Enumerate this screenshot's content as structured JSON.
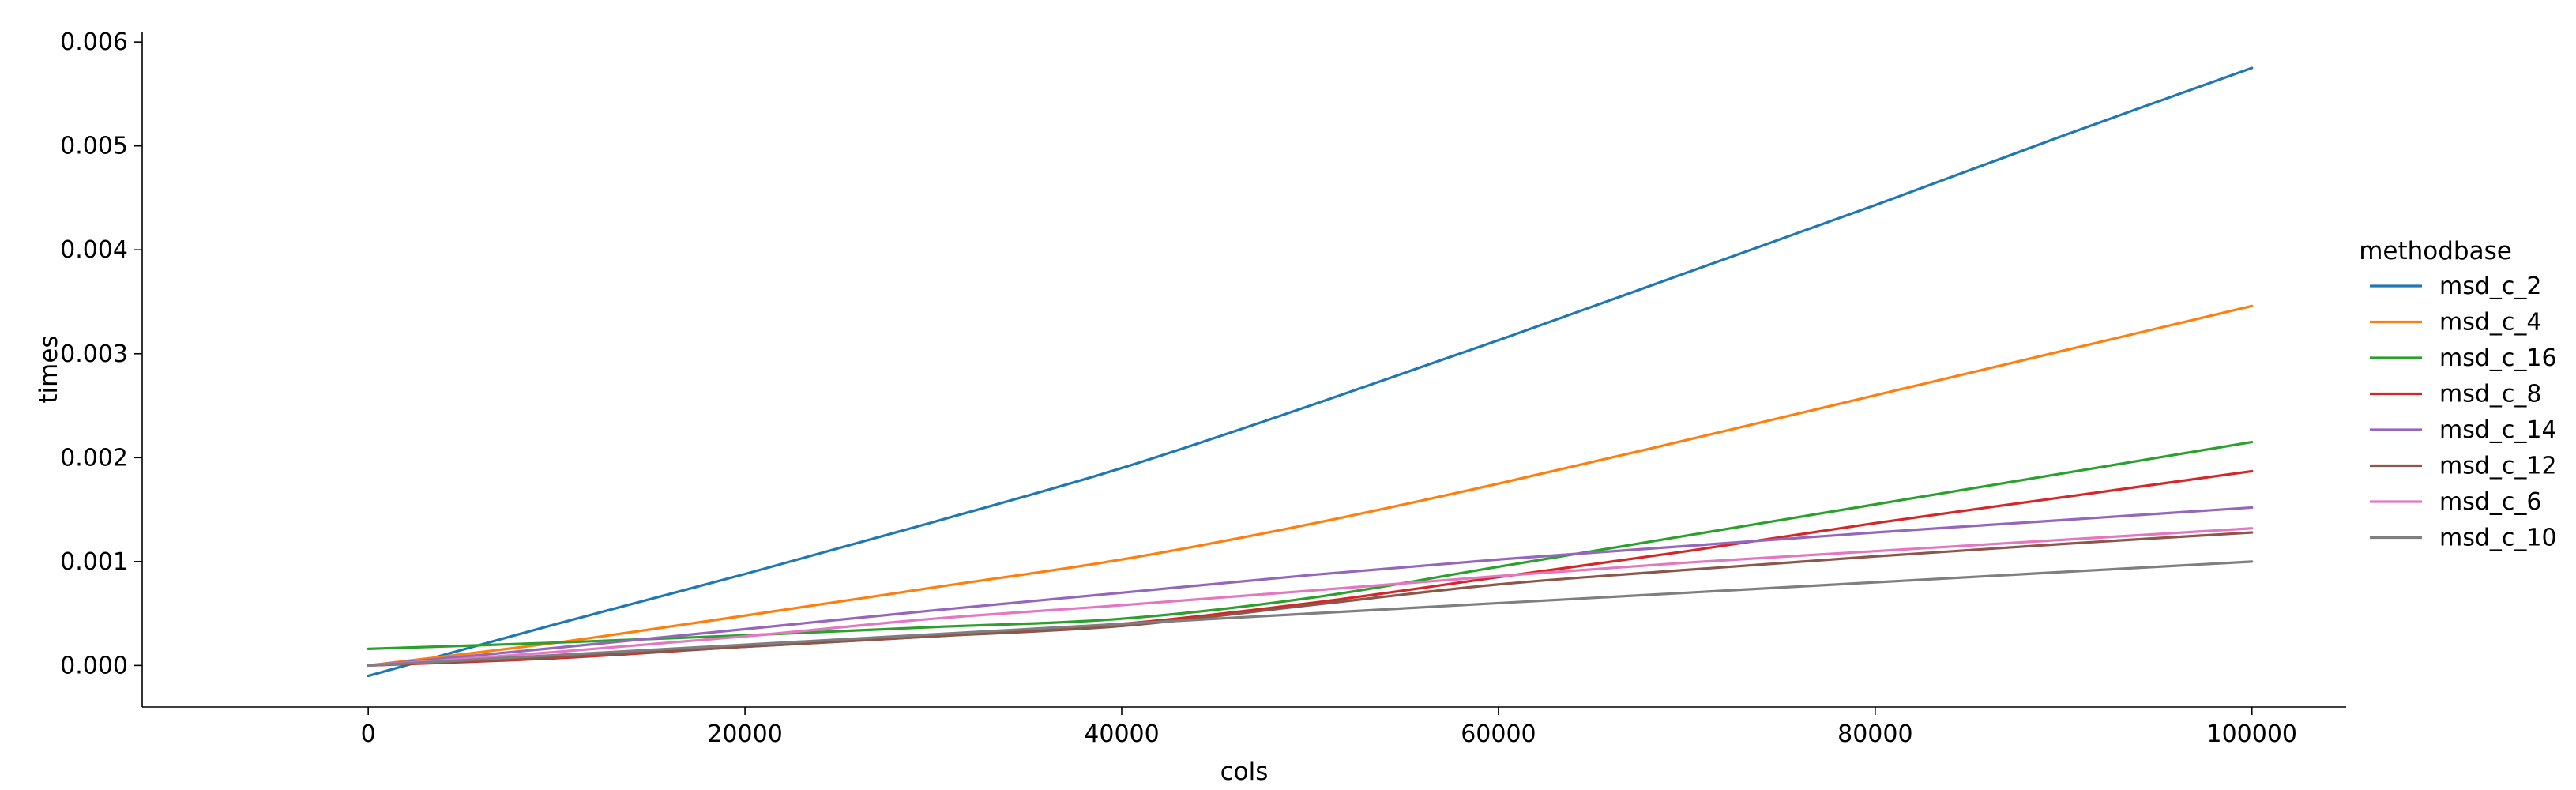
{
  "chart_data": {
    "type": "line",
    "title": "",
    "xlabel": "cols",
    "ylabel": "times",
    "xlim": [
      -12000,
      105000
    ],
    "ylim": [
      -0.0004,
      0.0061
    ],
    "xticks": [
      0,
      20000,
      40000,
      60000,
      80000,
      100000
    ],
    "xtick_labels": [
      "0",
      "20000",
      "40000",
      "60000",
      "80000",
      "100000"
    ],
    "yticks": [
      0.0,
      0.001,
      0.002,
      0.003,
      0.004,
      0.005,
      0.006
    ],
    "ytick_labels": [
      "0.000",
      "0.001",
      "0.002",
      "0.003",
      "0.004",
      "0.005",
      "0.006"
    ],
    "grid": false,
    "legend": {
      "title": "methodbase",
      "placement": "right"
    },
    "x": [
      0,
      10000,
      20000,
      30000,
      40000,
      50000,
      60000,
      70000,
      80000,
      90000,
      100000
    ],
    "series": [
      {
        "name": "msd_c_2",
        "color": "#1f77b4",
        "values": [
          -0.0001,
          0.0004,
          0.00088,
          0.00138,
          0.0019,
          0.0025,
          0.00313,
          0.00378,
          0.00443,
          0.0051,
          0.00575
        ]
      },
      {
        "name": "msd_c_4",
        "color": "#ff7f0e",
        "values": [
          0.0,
          0.00022,
          0.00048,
          0.00075,
          0.00102,
          0.00136,
          0.00175,
          0.00217,
          0.0026,
          0.00303,
          0.00346
        ]
      },
      {
        "name": "msd_c_16",
        "color": "#2ca02c",
        "values": [
          0.00016,
          0.00022,
          0.00029,
          0.00037,
          0.00045,
          0.00065,
          0.00095,
          0.00125,
          0.00155,
          0.00185,
          0.00215
        ]
      },
      {
        "name": "msd_c_8",
        "color": "#d62728",
        "values": [
          0.0,
          7e-05,
          0.00018,
          0.00028,
          0.0004,
          0.0006,
          0.00085,
          0.0011,
          0.00137,
          0.00162,
          0.00187
        ]
      },
      {
        "name": "msd_c_14",
        "color": "#9467bd",
        "values": [
          0.0,
          0.00017,
          0.00035,
          0.00053,
          0.0007,
          0.00087,
          0.00102,
          0.00115,
          0.00128,
          0.0014,
          0.00152
        ]
      },
      {
        "name": "msd_c_12",
        "color": "#8c564b",
        "values": [
          0.0,
          8e-05,
          0.00018,
          0.00028,
          0.00038,
          0.00058,
          0.00078,
          0.00092,
          0.00105,
          0.00117,
          0.00128
        ]
      },
      {
        "name": "msd_c_6",
        "color": "#e377c2",
        "values": [
          0.0,
          0.00013,
          0.00028,
          0.00045,
          0.00058,
          0.00072,
          0.00086,
          0.00099,
          0.0011,
          0.00121,
          0.00132
        ]
      },
      {
        "name": "msd_c_10",
        "color": "#7f7f7f",
        "values": [
          0.0,
          0.0001,
          0.0002,
          0.0003,
          0.0004,
          0.0005,
          0.0006,
          0.0007,
          0.0008,
          0.0009,
          0.001
        ]
      }
    ]
  }
}
